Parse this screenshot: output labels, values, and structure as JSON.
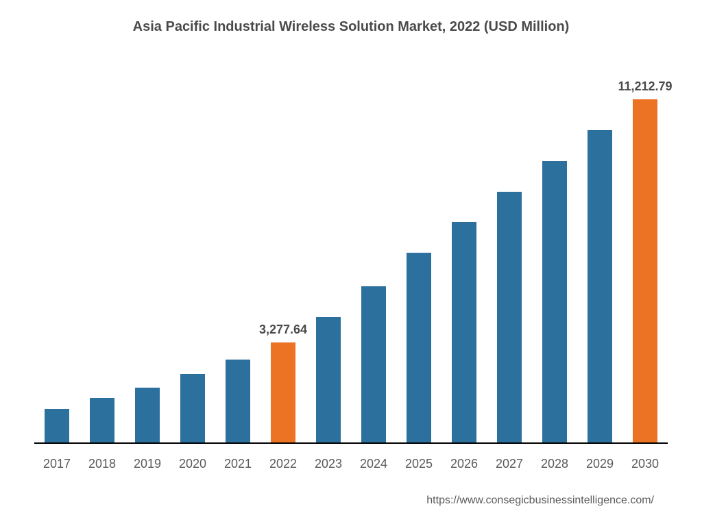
{
  "chart": {
    "type": "bar",
    "title": "Asia Pacific Industrial Wireless Solution Market, 2022 (USD Million)",
    "title_fontsize": 20,
    "title_color": "#4a4a4a",
    "background_color": "#ffffff",
    "categories": [
      "2017",
      "2018",
      "2019",
      "2020",
      "2021",
      "2022",
      "2023",
      "2024",
      "2025",
      "2026",
      "2027",
      "2028",
      "2029",
      "2030"
    ],
    "values": [
      1100,
      1450,
      1800,
      2250,
      2700,
      3277.64,
      4100,
      5100,
      6200,
      7200,
      8200,
      9200,
      10200,
      11212.79
    ],
    "bar_colors": [
      "#2c709e",
      "#2c709e",
      "#2c709e",
      "#2c709e",
      "#2c709e",
      "#ec7224",
      "#2c709e",
      "#2c709e",
      "#2c709e",
      "#2c709e",
      "#2c709e",
      "#2c709e",
      "#2c709e",
      "#ec7224"
    ],
    "value_labels": {
      "5": "3,277.64",
      "13": "11,212.79"
    },
    "value_label_fontsize": 18,
    "x_label_fontsize": 18,
    "x_label_color": "#5a5a5a",
    "ylim": [
      0,
      12000
    ],
    "bar_width": 0.54,
    "axis_color": "#000000",
    "source_text": "https://www.consegicbusinessintelligence.com/",
    "source_fontsize": 16,
    "source_color": "#5a5a5a"
  }
}
